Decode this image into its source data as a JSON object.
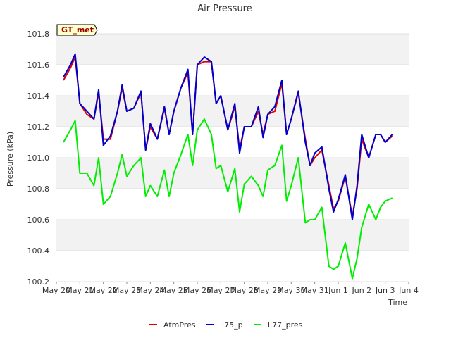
{
  "chart_data": {
    "type": "line",
    "title": "Air Pressure",
    "xlabel": "Time",
    "ylabel": "Pressure (kPa)",
    "annotation": "GT_met",
    "x_range": [
      "May 20",
      "Jun 4"
    ],
    "ylim": [
      100.2,
      101.8
    ],
    "x_ticks": [
      "May 20",
      "May 21",
      "May 22",
      "May 23",
      "May 24",
      "May 25",
      "May 26",
      "May 27",
      "May 28",
      "May 29",
      "May 30",
      "May 31",
      "Jun 1",
      "Jun 2",
      "Jun 3",
      "Jun 4"
    ],
    "y_ticks": [
      "100.2",
      "100.4",
      "100.6",
      "100.8",
      "101.0",
      "101.2",
      "101.4",
      "101.6",
      "101.8"
    ],
    "grid": "horizontal bands",
    "legend_position": "bottom",
    "colors": {
      "AtmPres": "#dd0000",
      "li75_p": "#0000cc",
      "li77_pres": "#00ee00"
    },
    "x": [
      "May 20.3",
      "May 20.6",
      "May 20.8",
      "May 21.0",
      "May 21.3",
      "May 21.6",
      "May 21.8",
      "May 22.0",
      "May 22.3",
      "May 22.6",
      "May 22.8",
      "May 23.0",
      "May 23.3",
      "May 23.6",
      "May 23.8",
      "May 24.0",
      "May 24.3",
      "May 24.6",
      "May 24.8",
      "May 25.0",
      "May 25.3",
      "May 25.6",
      "May 25.8",
      "May 26.0",
      "May 26.3",
      "May 26.6",
      "May 26.8",
      "May 27.0",
      "May 27.3",
      "May 27.6",
      "May 27.8",
      "May 28.0",
      "May 28.3",
      "May 28.6",
      "May 28.8",
      "May 29.0",
      "May 29.3",
      "May 29.6",
      "May 29.8",
      "May 30.0",
      "May 30.3",
      "May 30.6",
      "May 30.8",
      "May 31.0",
      "May 31.3",
      "May 31.6",
      "May 31.8",
      "Jun 1.0",
      "Jun 1.3",
      "Jun 1.6",
      "Jun 1.8",
      "Jun 2.0",
      "Jun 2.3",
      "Jun 2.6",
      "Jun 2.8",
      "Jun 3.0",
      "Jun 3.3"
    ],
    "series": [
      {
        "name": "AtmPres",
        "values": [
          101.5,
          101.58,
          101.65,
          101.35,
          101.28,
          101.25,
          101.42,
          101.12,
          101.12,
          101.3,
          101.45,
          101.3,
          101.32,
          101.42,
          101.05,
          101.2,
          101.12,
          101.32,
          101.15,
          101.3,
          101.45,
          101.55,
          101.15,
          101.6,
          101.62,
          101.62,
          101.35,
          101.4,
          101.18,
          101.33,
          101.05,
          101.2,
          101.2,
          101.3,
          101.15,
          101.28,
          101.3,
          101.48,
          101.15,
          101.25,
          101.42,
          101.12,
          100.95,
          101.0,
          101.05,
          100.82,
          100.67,
          100.72,
          100.88,
          100.62,
          100.8,
          101.12,
          101.0,
          101.15,
          101.15,
          101.1,
          101.14
        ]
      },
      {
        "name": "li75_p",
        "values": [
          101.52,
          101.6,
          101.67,
          101.35,
          101.3,
          101.25,
          101.44,
          101.08,
          101.14,
          101.3,
          101.47,
          101.3,
          101.32,
          101.43,
          101.05,
          101.22,
          101.12,
          101.33,
          101.15,
          101.3,
          101.45,
          101.57,
          101.15,
          101.6,
          101.65,
          101.62,
          101.35,
          101.4,
          101.18,
          101.35,
          101.03,
          101.2,
          101.2,
          101.33,
          101.13,
          101.28,
          101.33,
          101.5,
          101.15,
          101.25,
          101.43,
          101.1,
          100.95,
          101.03,
          101.07,
          100.8,
          100.65,
          100.73,
          100.89,
          100.6,
          100.82,
          101.15,
          101.0,
          101.15,
          101.15,
          101.1,
          101.15
        ]
      },
      {
        "name": "li77_pres",
        "values": [
          101.1,
          101.18,
          101.24,
          100.9,
          100.9,
          100.82,
          101.0,
          100.7,
          100.75,
          100.9,
          101.02,
          100.88,
          100.95,
          101.0,
          100.75,
          100.82,
          100.75,
          100.92,
          100.75,
          100.9,
          101.02,
          101.15,
          100.95,
          101.18,
          101.25,
          101.15,
          100.93,
          100.95,
          100.78,
          100.93,
          100.65,
          100.83,
          100.88,
          100.82,
          100.75,
          100.92,
          100.95,
          101.08,
          100.72,
          100.82,
          101.0,
          100.58,
          100.6,
          100.6,
          100.68,
          100.3,
          100.28,
          100.3,
          100.45,
          100.22,
          100.35,
          100.55,
          100.7,
          100.6,
          100.68,
          100.72,
          100.74
        ]
      }
    ]
  }
}
